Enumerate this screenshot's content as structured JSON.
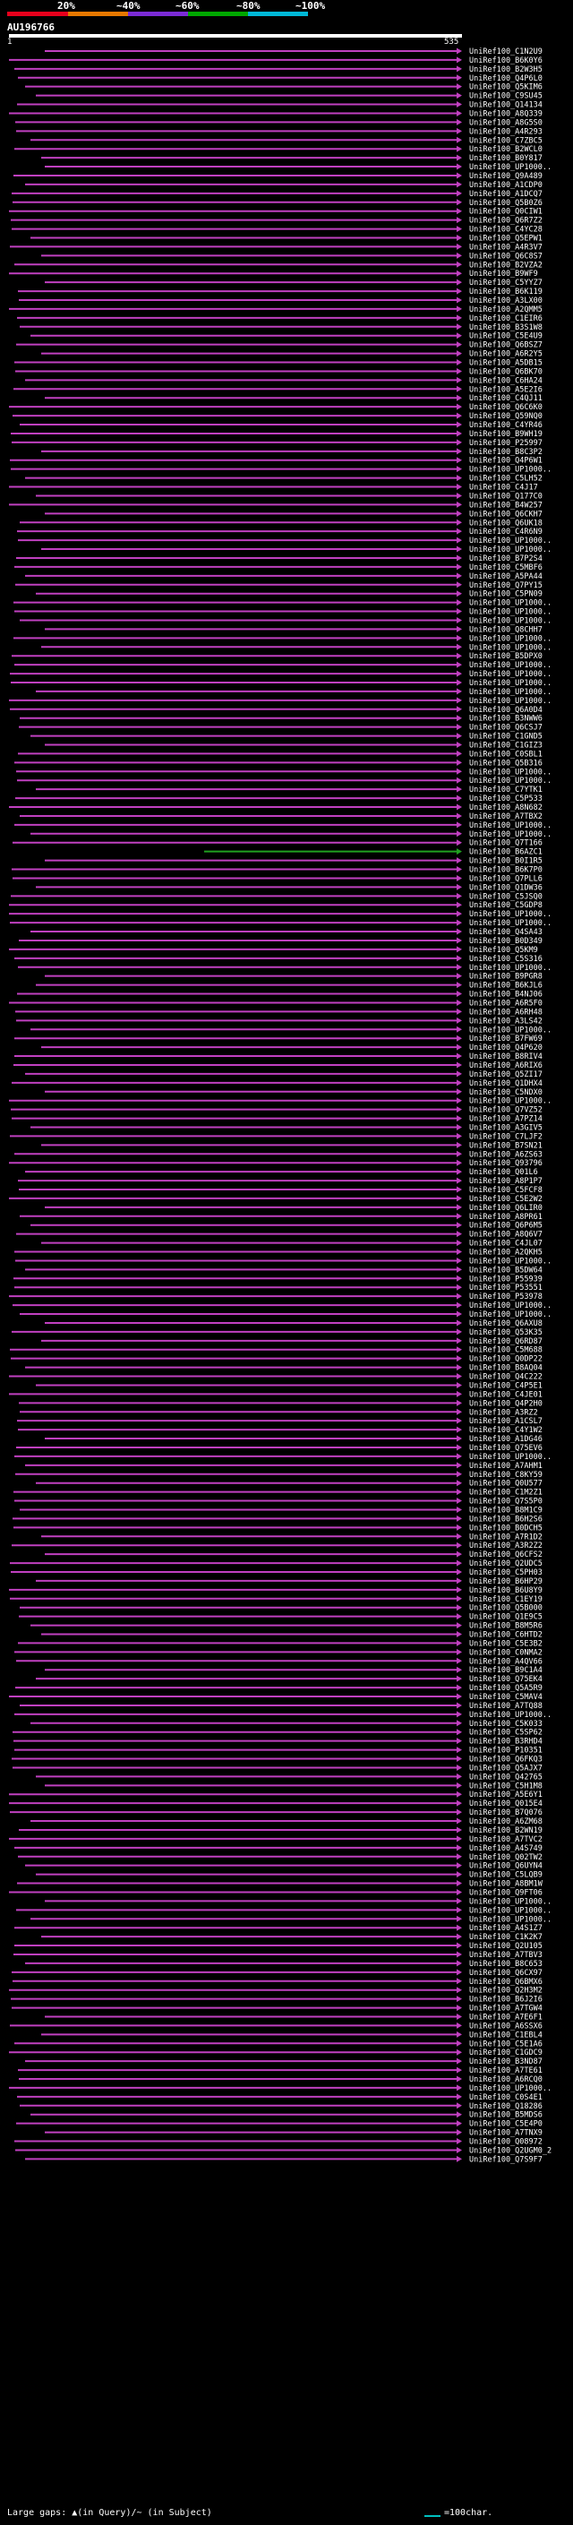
{
  "header": {
    "scale_labels": [
      "20%",
      "~40%",
      "~60%",
      "~80%",
      "~100%"
    ],
    "scale_colors": [
      "#e8001c",
      "#e87800",
      "#7b2bd6",
      "#00a800",
      "#00b8d8"
    ],
    "query_id": "AU196766",
    "axis_start": "1",
    "axis_end": "535"
  },
  "legend": {
    "gaps_text": "Large gaps: ▲(in Query)/~ (in Subject)",
    "scale_text": "=100char."
  },
  "chart_data": {
    "type": "alignment-hit-map",
    "query_length": 535,
    "hit_color": "#c040c0",
    "highlight_color": "#20a020",
    "highlight_index": 90,
    "labels": [
      "UniRef100_C1N2U9",
      "UniRef100_B6K0Y6",
      "UniRef100_B2W3H5",
      "UniRef100_Q4P6L0",
      "UniRef100_Q5KIM6",
      "UniRef100_C9SU45",
      "UniRef100_Q14134",
      "UniRef100_A8Q339",
      "UniRef100_A8G5S0",
      "UniRef100_A4R293",
      "UniRef100_C7ZBC5",
      "UniRef100_B2WCL0",
      "UniRef100_B0Y817",
      "UniRef100_UP1000..",
      "UniRef100_Q9A489",
      "UniRef100_A1CDP0",
      "UniRef100_A1DCQ7",
      "UniRef100_Q5B0Z6",
      "UniRef100_Q0CIW1",
      "UniRef100_Q6R7Z2",
      "UniRef100_C4YC28",
      "UniRef100_Q5EPW1",
      "UniRef100_A4R3V7",
      "UniRef100_Q6C8S7",
      "UniRef100_B2VZA2",
      "UniRef100_B9WF9",
      "UniRef100_C5YYZ7",
      "UniRef100_B6K119",
      "UniRef100_A3LX00",
      "UniRef100_A2QMM5",
      "UniRef100_C1EIR6",
      "UniRef100_B3S1W8",
      "UniRef100_C5E4U9",
      "UniRef100_Q6BSZ7",
      "UniRef100_A6R2Y5",
      "UniRef100_A5DB15",
      "UniRef100_Q6BK70",
      "UniRef100_C6HA24",
      "UniRef100_A5E2I6",
      "UniRef100_C4QJ11",
      "UniRef100_Q6C6K0",
      "UniRef100_Q59NQ0",
      "UniRef100_C4YR46",
      "UniRef100_B9WH19",
      "UniRef100_P25997",
      "UniRef100_B8C3P2",
      "UniRef100_Q4P6W1",
      "UniRef100_UP1000..",
      "UniRef100_C5LH52",
      "UniRef100_C4J17",
      "UniRef100_Q177C0",
      "UniRef100_B4W257",
      "UniRef100_Q6CKH7",
      "UniRef100_Q6UK18",
      "UniRef100_C4R6N9",
      "UniRef100_UP1000..",
      "UniRef100_UP1000..",
      "UniRef100_B7P2S4",
      "UniRef100_C5MBF6",
      "UniRef100_A5PA44",
      "UniRef100_Q7PY15",
      "UniRef100_C5PN09",
      "UniRef100_UP1000..",
      "UniRef100_UP1000..",
      "UniRef100_UP1000..",
      "UniRef100_Q8CHH7",
      "UniRef100_UP1000..",
      "UniRef100_UP1000..",
      "UniRef100_B5DPX0",
      "UniRef100_UP1000..",
      "UniRef100_UP1000..",
      "UniRef100_UP1000..",
      "UniRef100_UP1000..",
      "UniRef100_UP1000..",
      "UniRef100_Q6A0D4",
      "UniRef100_B3NWW6",
      "UniRef100_Q6CSJ7",
      "UniRef100_C1GND5",
      "UniRef100_C1GIZ3",
      "UniRef100_C0SBL1",
      "UniRef100_Q5B316",
      "UniRef100_UP1000..",
      "UniRef100_UP1000..",
      "UniRef100_C7YTK1",
      "UniRef100_C5P533",
      "UniRef100_A8N682",
      "UniRef100_A7TBX2",
      "UniRef100_UP1000..",
      "UniRef100_UP1000..",
      "UniRef100_Q7T166",
      "UniRef100_B6AZC1",
      "UniRef100_B0I1R5",
      "UniRef100_B6K7P0",
      "UniRef100_Q7PLL6",
      "UniRef100_Q1DW36",
      "UniRef100_C5JSQ0",
      "UniRef100_C5GDP8",
      "UniRef100_UP1000..",
      "UniRef100_UP1000..",
      "UniRef100_Q4SA43",
      "UniRef100_B0D349",
      "UniRef100_Q5KM9",
      "UniRef100_C5S316",
      "UniRef100_UP1000..",
      "UniRef100_B9PGR8",
      "UniRef100_B6KJL6",
      "UniRef100_B4NJ06",
      "UniRef100_A6R5F0",
      "UniRef100_A6RH48",
      "UniRef100_A3LS42",
      "UniRef100_UP1000..",
      "UniRef100_B7FW69",
      "UniRef100_Q4P620",
      "UniRef100_B8RIV4",
      "UniRef100_A6RIX6",
      "UniRef100_Q5ZI17",
      "UniRef100_Q1DHX4",
      "UniRef100_C5NDX0",
      "UniRef100_UP1000..",
      "UniRef100_Q7VZ52",
      "UniRef100_A7PZ14",
      "UniRef100_A3GIV5",
      "UniRef100_C7LJF2",
      "UniRef100_B7SN21",
      "UniRef100_A6ZS63",
      "UniRef100_Q93796",
      "UniRef100_Q01L6",
      "UniRef100_A8P1P7",
      "UniRef100_C5FCF8",
      "UniRef100_C5E2W2",
      "UniRef100_Q6LIR0",
      "UniRef100_A8PR61",
      "UniRef100_Q6P6M5",
      "UniRef100_A8Q6V7",
      "UniRef100_C4JL07",
      "UniRef100_A2QKH5",
      "UniRef100_UP1000..",
      "UniRef100_B5DW64",
      "UniRef100_P55939",
      "UniRef100_P53551",
      "UniRef100_P53978",
      "UniRef100_UP1000..",
      "UniRef100_UP1000..",
      "UniRef100_Q6AXU8",
      "UniRef100_Q53K35",
      "UniRef100_Q6RD87",
      "UniRef100_C5M688",
      "UniRef100_Q0DP22",
      "UniRef100_B8AQ04",
      "UniRef100_Q4C222",
      "UniRef100_C4P5E1",
      "UniRef100_C4JE01",
      "UniRef100_Q4P2H0",
      "UniRef100_A3RZ2",
      "UniRef100_A1CSL7",
      "UniRef100_C4Y1W2",
      "UniRef100_A1DG46",
      "UniRef100_Q75EV6",
      "UniRef100_UP1000..",
      "UniRef100_A7AHM1",
      "UniRef100_C8KY59",
      "UniRef100_Q0U577",
      "UniRef100_C1M2Z1",
      "UniRef100_Q7S5P0",
      "UniRef100_B8M1C9",
      "UniRef100_B6H2S6",
      "UniRef100_B0DCH5",
      "UniRef100_A7R1D2",
      "UniRef100_A3R2Z2",
      "UniRef100_Q6CFS2",
      "UniRef100_Q2UDC5",
      "UniRef100_C5PH03",
      "UniRef100_B6HP29",
      "UniRef100_B6U8Y9",
      "UniRef100_C1EY19",
      "UniRef100_Q5B000",
      "UniRef100_Q1E9C5",
      "UniRef100_B8M5R6",
      "UniRef100_C6HTD2",
      "UniRef100_C5E3B2",
      "UniRef100_C0NMA2",
      "UniRef100_A4QV66",
      "UniRef100_B9C1A4",
      "UniRef100_Q75EK4",
      "UniRef100_Q5A5R9",
      "UniRef100_C5MAV4",
      "UniRef100_A7TQ88",
      "UniRef100_UP1000..",
      "UniRef100_C5K033",
      "UniRef100_C5SP62",
      "UniRef100_B3RHD4",
      "UniRef100_P10351",
      "UniRef100_Q6FKQ3",
      "UniRef100_Q5AJX7",
      "UniRef100_Q42765",
      "UniRef100_C5H1M8",
      "UniRef100_A5E6Y1",
      "UniRef100_Q015E4",
      "UniRef100_B7Q076",
      "UniRef100_A6ZM68",
      "UniRef100_B2WN19",
      "UniRef100_A7TVC2",
      "UniRef100_A4S749",
      "UniRef100_Q02TW2",
      "UniRef100_Q6UYN4",
      "UniRef100_C5LQB9",
      "UniRef100_A8BM1W",
      "UniRef100_Q9FT06",
      "UniRef100_UP1000..",
      "UniRef100_UP1000..",
      "UniRef100_UP1000..",
      "UniRef100_A4S1Z7",
      "UniRef100_C1K2K7",
      "UniRef100_Q2U105",
      "UniRef100_A7TBV3",
      "UniRef100_B8C653",
      "UniRef100_Q6CX97",
      "UniRef100_Q6BMX6",
      "UniRef100_Q2H3M2",
      "UniRef100_B6J2I6",
      "UniRef100_A7TGW4",
      "UniRef100_A7E6F1",
      "UniRef100_A6SSX6",
      "UniRef100_C1EBL4",
      "UniRef100_C5E1A6",
      "UniRef100_C1GDC9",
      "UniRef100_B3ND87",
      "UniRef100_A7TE61",
      "UniRef100_A6RCQ0",
      "UniRef100_UP1000..",
      "UniRef100_C0S4E1",
      "UniRef100_Q18286",
      "UniRef100_B5MDS6",
      "UniRef100_C5E4P0",
      "UniRef100_A7TNX9",
      "UniRef100_Q08972",
      "UniRef100_Q2UGM0_2",
      "UniRef100_Q7S9F7"
    ]
  }
}
